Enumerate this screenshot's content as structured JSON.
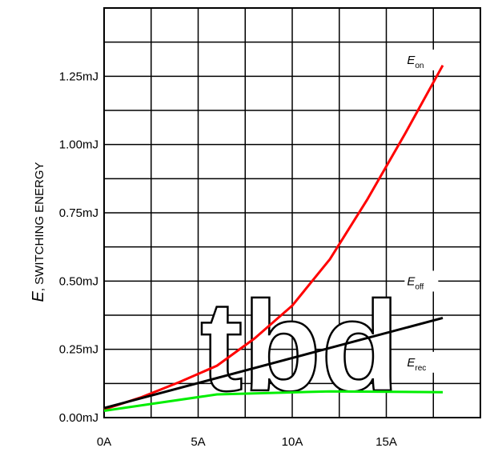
{
  "chart_data": {
    "type": "line",
    "title": "",
    "xlabel": "",
    "ylabel_symbol": "E",
    "ylabel_text": ", SWITCHING ENERGY",
    "x_ticks": [
      {
        "value": 0,
        "label": "0A"
      },
      {
        "value": 5,
        "label": "5A"
      },
      {
        "value": 10,
        "label": "10A"
      },
      {
        "value": 15,
        "label": "15A"
      }
    ],
    "y_ticks": [
      {
        "value": 0.0,
        "label": "0.00mJ"
      },
      {
        "value": 0.25,
        "label": "0.25mJ"
      },
      {
        "value": 0.5,
        "label": "0.50mJ"
      },
      {
        "value": 0.75,
        "label": "0.75mJ"
      },
      {
        "value": 1.0,
        "label": "1.00mJ"
      },
      {
        "value": 1.25,
        "label": "1.25mJ"
      }
    ],
    "xlim": [
      0,
      20
    ],
    "ylim": [
      0,
      1.5
    ],
    "grid": true,
    "x_grid_step": 2.5,
    "y_grid_step": 0.125,
    "series": [
      {
        "name": "E",
        "subscript": "on",
        "color": "#ff0000",
        "x": [
          0,
          2,
          4,
          6,
          8,
          10,
          12,
          14,
          16,
          18
        ],
        "y": [
          0.03,
          0.075,
          0.13,
          0.19,
          0.29,
          0.41,
          0.58,
          0.8,
          1.04,
          1.29
        ]
      },
      {
        "name": "E",
        "subscript": "off",
        "color": "#000000",
        "x": [
          0,
          18
        ],
        "y": [
          0.035,
          0.365
        ]
      },
      {
        "name": "E",
        "subscript": "rec",
        "color": "#00ee00",
        "x": [
          0,
          6,
          12,
          18
        ],
        "y": [
          0.025,
          0.085,
          0.096,
          0.093
        ]
      }
    ],
    "annotation": "tbd"
  }
}
